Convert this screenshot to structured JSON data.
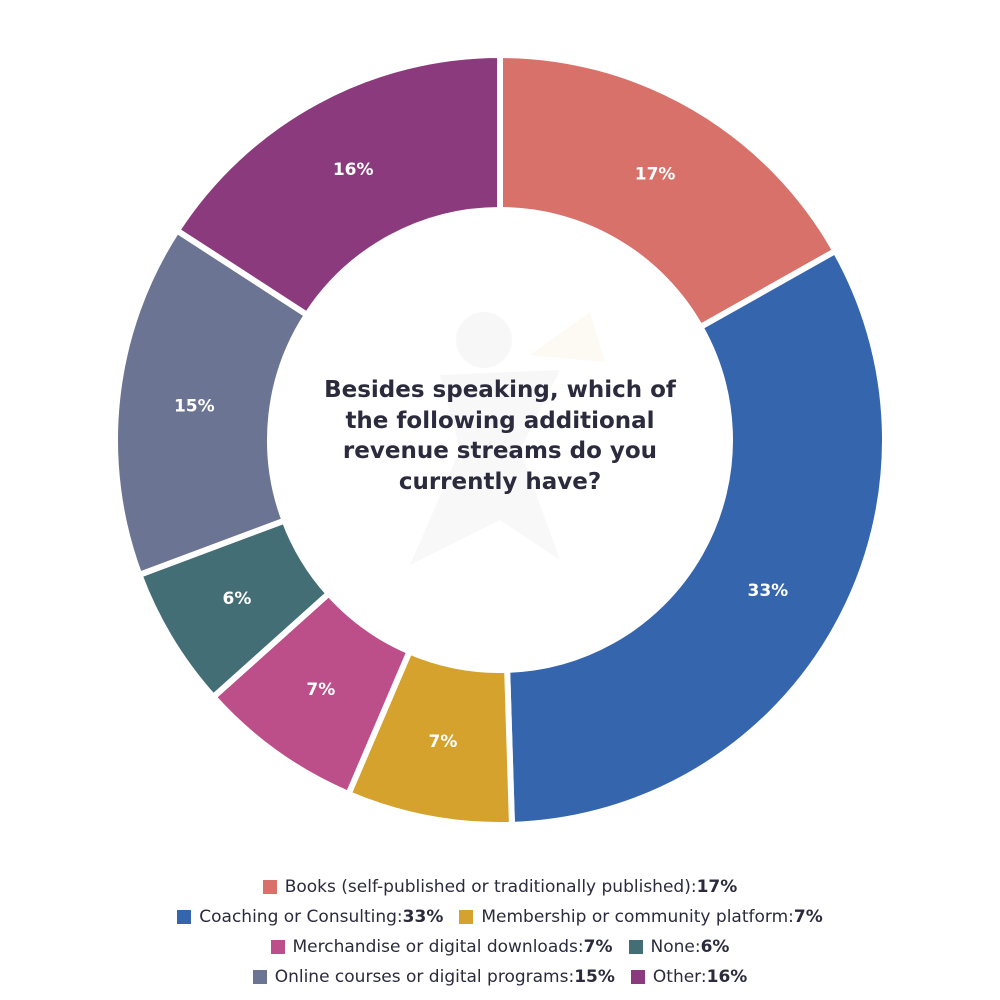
{
  "chart_data": {
    "type": "pie",
    "donut": true,
    "title": "Besides speaking, which of the following additional revenue streams do you currently have?",
    "slices": [
      {
        "label": "Books (self-published or traditionally published)",
        "value": 17,
        "display": "17%",
        "color": "#D8716A"
      },
      {
        "label": "Coaching or Consulting",
        "value": 33,
        "display": "33%",
        "color": "#3465AD"
      },
      {
        "label": "Membership or community platform",
        "value": 7,
        "display": "7%",
        "color": "#D4A22D"
      },
      {
        "label": "Merchandise or digital downloads",
        "value": 7,
        "display": "7%",
        "color": "#BC4F89"
      },
      {
        "label": "None",
        "value": 6,
        "display": "6%",
        "color": "#436E75"
      },
      {
        "label": "Online courses or digital programs",
        "value": 15,
        "display": "15%",
        "color": "#6C7493"
      },
      {
        "label": "Other",
        "value": 16,
        "display": "16%",
        "color": "#8B3A7D"
      }
    ],
    "legend_placement": "bottom"
  },
  "legend": {
    "separator": ": ",
    "rows": [
      [
        0
      ],
      [
        1,
        2
      ],
      [
        3,
        4
      ],
      [
        5,
        6
      ]
    ]
  }
}
